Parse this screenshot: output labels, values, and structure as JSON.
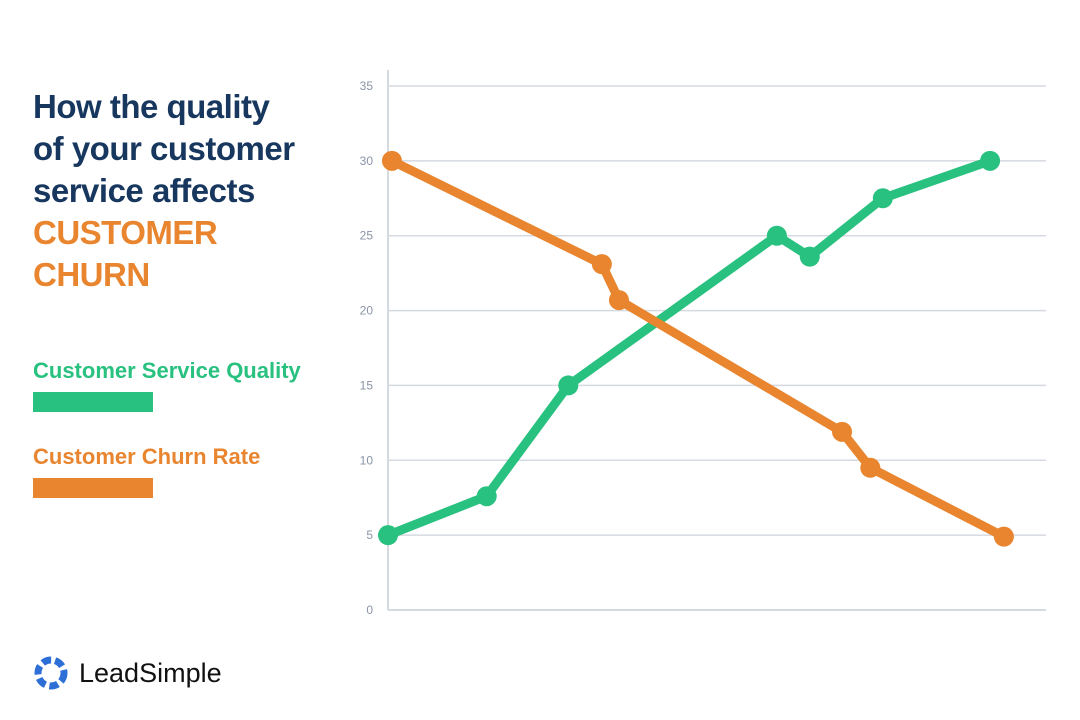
{
  "title": {
    "line1": "How the quality",
    "line2": "of your customer",
    "line3": "service affects",
    "highlight1": "CUSTOMER",
    "highlight2": "CHURN"
  },
  "brand": {
    "name": "LeadSimple"
  },
  "colors": {
    "navy": "#17375e",
    "green": "#28c17f",
    "orange": "#e8852e",
    "grid": "#d5dae1"
  },
  "chart_data": {
    "type": "line",
    "title": "How the quality of your customer service affects CUSTOMER CHURN",
    "xlabel": "",
    "ylabel": "",
    "xlim": [
      0,
      100
    ],
    "ylim": [
      0,
      35
    ],
    "yticks": [
      "0",
      "5",
      "10",
      "15",
      "20",
      "25",
      "30",
      "35"
    ],
    "grid": true,
    "legend_placement": "left",
    "series": [
      {
        "name": "Customer Service Quality",
        "color": "#28c17f",
        "x": [
          0,
          15,
          27.4,
          59.1,
          64.1,
          75.2,
          91.5
        ],
        "y": [
          5,
          7.6,
          15,
          25,
          23.6,
          27.5,
          30
        ]
      },
      {
        "name": "Customer Churn Rate",
        "color": "#e8852e",
        "x": [
          0.6,
          32.5,
          35.1,
          69,
          73.3,
          93.6
        ],
        "y": [
          30,
          23.1,
          20.7,
          11.9,
          9.5,
          4.9
        ]
      }
    ]
  }
}
